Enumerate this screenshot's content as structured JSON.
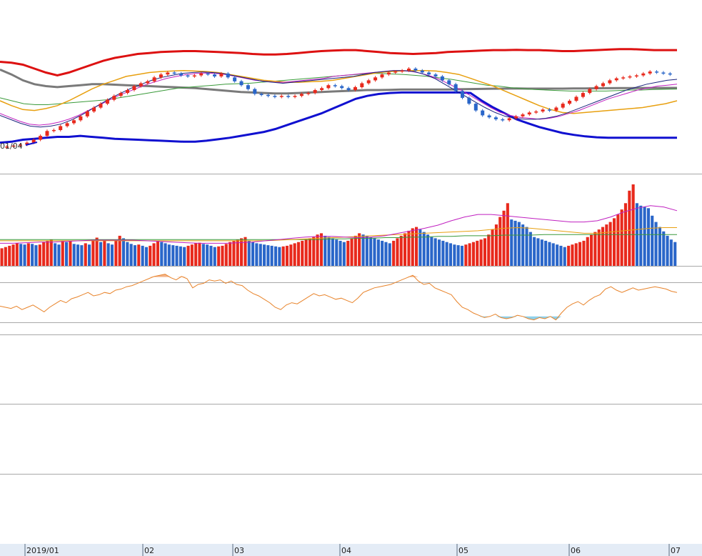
{
  "chart_data": {
    "type": "candlestick",
    "panels": [
      "price",
      "volume",
      "oscillator",
      "empty",
      "empty"
    ],
    "x_axis": {
      "labels": [
        "2019/01",
        "02",
        "03",
        "04",
        "05",
        "06",
        "07"
      ]
    },
    "annotation": "01/04",
    "colors": {
      "up": "#e8291c",
      "down": "#2a66c9",
      "upper_band": "#dd1111",
      "lower_band": "#1010d0",
      "long_ma": "#7a7a7a",
      "ma_orange": "#e8a010",
      "ma_green": "#3a9a3a",
      "ma_blue": "#1a237e",
      "ma_magenta": "#c020c0",
      "osc_line": "#e8832a",
      "osc_fill_high": "#f3b48a",
      "osc_fill_low": "#8fd0ea",
      "grid": "#a8a8a8",
      "axis_bg": "#e4ecf6"
    },
    "price": {
      "close": [
        8,
        9,
        10,
        12,
        15,
        19,
        24,
        25,
        29,
        32,
        35,
        39,
        44,
        48,
        52,
        56,
        60,
        63,
        66,
        70,
        73,
        75,
        79,
        82,
        84,
        83,
        81,
        80,
        81,
        83,
        82,
        80,
        83,
        79,
        75,
        71,
        67,
        62,
        61,
        60,
        59,
        60,
        59,
        60,
        62,
        63,
        66,
        68,
        71,
        70,
        68,
        66,
        69,
        73,
        76,
        79,
        82,
        84,
        85,
        86,
        88,
        86,
        84,
        82,
        80,
        76,
        72,
        65,
        58,
        52,
        45,
        40,
        38,
        36,
        35,
        37,
        39,
        41,
        43,
        44,
        46,
        45,
        48,
        52,
        55,
        59,
        63,
        67,
        70,
        73,
        76,
        78,
        79,
        80,
        81,
        83,
        85,
        84,
        83,
        82
      ],
      "upper_band": [
        95,
        94,
        92,
        88,
        84,
        81,
        84,
        88,
        92,
        96,
        99,
        101,
        103,
        104,
        105,
        105.5,
        106,
        106,
        105.5,
        105,
        104.5,
        104,
        103,
        102.5,
        102.5,
        103,
        104,
        105,
        106,
        106.5,
        107,
        107,
        106,
        105,
        104,
        103.5,
        103,
        103.5,
        104,
        105,
        105.5,
        106,
        106.5,
        107,
        107,
        107.2,
        107,
        107,
        106.5,
        106,
        106,
        106.5,
        107,
        107.5,
        108,
        108,
        107.5,
        107,
        107,
        107
      ],
      "lower_band": [
        12,
        13,
        15,
        16,
        17,
        18,
        18,
        19,
        18,
        17,
        16,
        15.5,
        15,
        14.5,
        14,
        13.5,
        13,
        13,
        14,
        15.5,
        17,
        19,
        21,
        23,
        26,
        30,
        34,
        38,
        42,
        47,
        52,
        57,
        60,
        62,
        63,
        63.5,
        63.5,
        63.5,
        63.5,
        63.5,
        63.5,
        63,
        55,
        48,
        42,
        36,
        32,
        28,
        25,
        22,
        20,
        18.5,
        17.5,
        17,
        17,
        17,
        17,
        17,
        17,
        17
      ],
      "long_ma": [
        87,
        82,
        76,
        72,
        70,
        69,
        70,
        71,
        72,
        72,
        71.5,
        71,
        70.5,
        70,
        69.5,
        69,
        68.5,
        68,
        67,
        66,
        65,
        64,
        63.5,
        63,
        62.5,
        62.5,
        63,
        63.5,
        64,
        64.5,
        65,
        65.5,
        66,
        66,
        66.2,
        66.5,
        66.5,
        66.5,
        66.5,
        66.5,
        66.8,
        67,
        67.2,
        67.4,
        67.5,
        67.6,
        67.5,
        67.5,
        67.5,
        67.5,
        67.6,
        67.7,
        67.8,
        67.9,
        68,
        68,
        68.1,
        68.1,
        68.2,
        68.2
      ],
      "ma_orange": [
        55,
        50,
        46,
        45,
        47,
        50,
        55,
        61,
        67,
        72,
        76,
        80,
        82,
        84,
        85,
        85.5,
        86,
        85.5,
        85,
        84,
        82,
        80,
        78,
        76,
        75,
        74,
        74,
        74.5,
        75,
        76,
        78,
        80,
        82,
        84,
        85,
        85.5,
        86,
        86,
        85.5,
        84,
        82,
        78,
        74,
        70,
        65,
        60,
        55,
        50,
        46,
        43,
        42,
        43,
        44,
        45,
        46,
        47,
        48,
        50,
        52,
        55
      ],
      "ma_green": [
        58,
        55,
        52,
        51,
        51,
        52,
        53,
        54,
        55,
        56,
        58,
        60,
        62,
        64,
        66,
        68,
        69,
        70,
        71,
        72,
        72.5,
        73,
        74,
        75,
        76,
        77,
        78,
        79,
        80,
        81,
        82,
        83,
        83,
        82.5,
        82,
        81,
        80,
        78.5,
        77,
        75,
        73,
        71,
        70,
        68.5,
        67.5,
        66.5,
        66,
        65.5,
        65,
        65,
        65,
        65,
        65.5,
        66,
        66,
        66.5,
        66.8,
        67
      ],
      "ma_magenta": [
        42,
        38,
        34,
        31,
        30,
        31,
        33,
        36,
        40,
        45,
        50,
        55,
        60,
        64,
        68,
        72,
        75,
        78,
        80,
        82,
        83,
        83.5,
        83,
        82,
        80,
        78,
        76,
        75,
        74,
        74,
        75,
        76,
        77,
        78,
        80,
        81,
        82,
        83,
        84,
        85,
        86,
        86,
        85,
        83,
        80,
        76,
        71,
        66,
        60,
        54,
        48,
        43,
        40,
        38,
        37,
        36,
        37,
        39,
        42,
        45,
        49,
        53,
        57,
        60,
        63,
        66,
        68,
        70,
        71,
        72
      ],
      "ma_blue": [
        40,
        36,
        32,
        29,
        28,
        29,
        31,
        35,
        40,
        46,
        52,
        58,
        63,
        68,
        72,
        76,
        79,
        81,
        83,
        84,
        84.5,
        84,
        83,
        81,
        79,
        77,
        75,
        74,
        73,
        74,
        75,
        76,
        77,
        78,
        79,
        80,
        82,
        84,
        85,
        86,
        86,
        85,
        82,
        78,
        72,
        66,
        60,
        54,
        48,
        43,
        39,
        37,
        36,
        36,
        37,
        39,
        42,
        46,
        50,
        54,
        58,
        62,
        66,
        69,
        72,
        74,
        76,
        77
      ]
    },
    "volume": {
      "values": [
        28,
        30,
        32,
        34,
        36,
        35,
        34,
        36,
        35,
        33,
        34,
        38,
        40,
        42,
        36,
        34,
        40,
        38,
        40,
        35,
        34,
        33,
        36,
        34,
        40,
        45,
        38,
        40,
        36,
        34,
        42,
        48,
        44,
        38,
        35,
        33,
        34,
        32,
        30,
        32,
        36,
        40,
        38,
        36,
        34,
        33,
        32,
        31,
        30,
        32,
        34,
        36,
        37,
        35,
        34,
        32,
        30,
        31,
        32,
        35,
        38,
        40,
        42,
        44,
        46,
        40,
        38,
        36,
        35,
        34,
        33,
        32,
        31,
        30,
        31,
        32,
        34,
        36,
        38,
        40,
        42,
        44,
        46,
        50,
        52,
        48,
        46,
        44,
        42,
        40,
        38,
        40,
        44,
        48,
        52,
        50,
        48,
        46,
        44,
        42,
        40,
        38,
        36,
        40,
        44,
        48,
        52,
        56,
        60,
        62,
        58,
        54,
        50,
        46,
        44,
        42,
        40,
        38,
        36,
        34,
        33,
        32,
        34,
        36,
        38,
        40,
        42,
        44,
        50,
        58,
        66,
        78,
        88,
        100,
        74,
        72,
        70,
        66,
        62,
        54,
        46,
        44,
        42,
        40,
        38,
        36,
        34,
        32,
        30,
        32,
        34,
        36,
        38,
        40,
        46,
        50,
        54,
        58,
        62,
        66,
        70,
        76,
        82,
        90,
        100,
        120,
        130,
        100,
        96,
        94,
        92,
        80,
        70,
        62,
        55,
        48,
        42,
        38
      ],
      "ma_magenta": [
        36,
        36,
        37,
        38,
        38,
        39,
        40,
        41,
        41,
        41,
        41,
        40,
        39,
        38,
        37,
        36,
        36,
        36,
        37,
        38,
        40,
        42,
        44,
        46,
        47,
        47,
        46,
        45,
        46,
        48,
        52,
        56,
        60,
        65,
        72,
        78,
        82,
        82,
        80,
        78,
        76,
        74,
        72,
        70,
        70,
        72,
        78,
        86,
        92,
        96,
        94,
        88
      ],
      "ma_orange": [
        40,
        40,
        40,
        40,
        40,
        40,
        40,
        40,
        40,
        40,
        40,
        40,
        40,
        40,
        40,
        40,
        40,
        40,
        40,
        40,
        40,
        41,
        42,
        43,
        44,
        45,
        46,
        47,
        48,
        49,
        50,
        51,
        52,
        53,
        54,
        55,
        56,
        58,
        60,
        61,
        60,
        58,
        56,
        54,
        52,
        52,
        54,
        56,
        58,
        60,
        61,
        61
      ],
      "ma_green": [
        42,
        42,
        42,
        42,
        42,
        42,
        42,
        42,
        42,
        42,
        42,
        42,
        42,
        42,
        42,
        42,
        42,
        42,
        42,
        42,
        42,
        42,
        42,
        42,
        42,
        43,
        43,
        44,
        44,
        45,
        45,
        46,
        46,
        47,
        47,
        48,
        48,
        48,
        49,
        49,
        49,
        50,
        50,
        50,
        50,
        50,
        50,
        50,
        50,
        50,
        50,
        50
      ]
    },
    "oscillator": {
      "values": [
        42,
        40,
        38,
        42,
        36,
        40,
        44,
        38,
        32,
        40,
        46,
        52,
        48,
        55,
        58,
        62,
        66,
        60,
        62,
        66,
        64,
        70,
        72,
        76,
        78,
        82,
        86,
        90,
        94,
        96,
        98,
        92,
        88,
        94,
        90,
        74,
        80,
        82,
        88,
        86,
        88,
        82,
        86,
        80,
        78,
        70,
        64,
        60,
        54,
        48,
        40,
        36,
        44,
        48,
        46,
        52,
        58,
        64,
        60,
        62,
        58,
        54,
        56,
        52,
        48,
        56,
        66,
        70,
        74,
        76,
        78,
        80,
        84,
        88,
        92,
        96,
        86,
        80,
        82,
        74,
        70,
        66,
        62,
        50,
        40,
        36,
        30,
        26,
        22,
        24,
        28,
        22,
        20,
        22,
        26,
        24,
        20,
        18,
        22,
        20,
        24,
        18,
        30,
        40,
        46,
        50,
        44,
        52,
        58,
        62,
        72,
        76,
        70,
        66,
        70,
        74,
        70,
        72,
        74,
        76,
        74,
        72,
        68,
        66
      ],
      "upper_threshold": 93,
      "lower_threshold": 24
    }
  }
}
